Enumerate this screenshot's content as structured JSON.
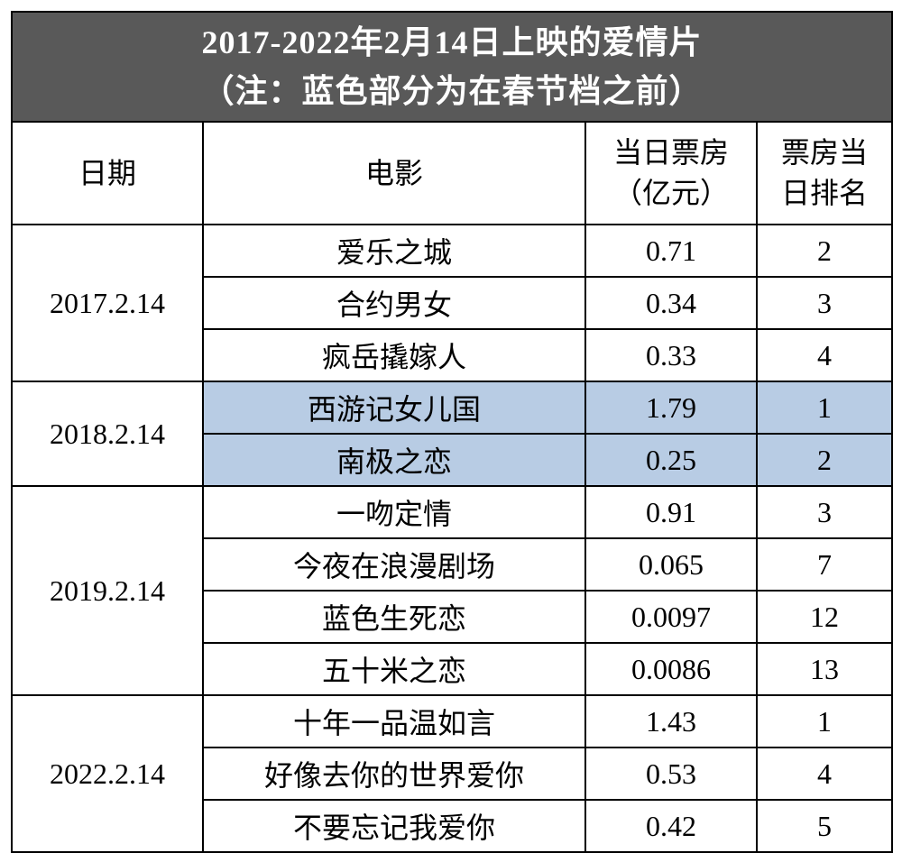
{
  "title_line1": "2017-2022年2月14日上映的爱情片",
  "title_line2": "（注：蓝色部分为在春节档之前）",
  "title_bg": "#595959",
  "headers": {
    "date": "日期",
    "movie": "电影",
    "box_office_line1": "当日票房",
    "box_office_line2": "（亿元）",
    "rank_line1": "票房当",
    "rank_line2": "日排名"
  },
  "highlight_bg": "#b8cce4",
  "normal_bg": "#ffffff",
  "groups": [
    {
      "date": "2017.2.14",
      "rows": [
        {
          "movie": "爱乐之城",
          "box": "0.71",
          "rank": "2",
          "hl": false
        },
        {
          "movie": "合约男女",
          "box": "0.34",
          "rank": "3",
          "hl": false
        },
        {
          "movie": "疯岳撬嫁人",
          "box": "0.33",
          "rank": "4",
          "hl": false
        }
      ]
    },
    {
      "date": "2018.2.14",
      "rows": [
        {
          "movie": "西游记女儿国",
          "box": "1.79",
          "rank": "1",
          "hl": true
        },
        {
          "movie": "南极之恋",
          "box": "0.25",
          "rank": "2",
          "hl": true
        }
      ]
    },
    {
      "date": "2019.2.14",
      "rows": [
        {
          "movie": "一吻定情",
          "box": "0.91",
          "rank": "3",
          "hl": false
        },
        {
          "movie": "今夜在浪漫剧场",
          "box": "0.065",
          "rank": "7",
          "hl": false
        },
        {
          "movie": "蓝色生死恋",
          "box": "0.0097",
          "rank": "12",
          "hl": false
        },
        {
          "movie": "五十米之恋",
          "box": "0.0086",
          "rank": "13",
          "hl": false
        }
      ]
    },
    {
      "date": "2022.2.14",
      "rows": [
        {
          "movie": "十年一品温如言",
          "box": "1.43",
          "rank": "1",
          "hl": false
        },
        {
          "movie": "好像去你的世界爱你",
          "box": "0.53",
          "rank": "4",
          "hl": false
        },
        {
          "movie": "不要忘记我爱你",
          "box": "0.42",
          "rank": "5",
          "hl": false
        }
      ]
    }
  ]
}
